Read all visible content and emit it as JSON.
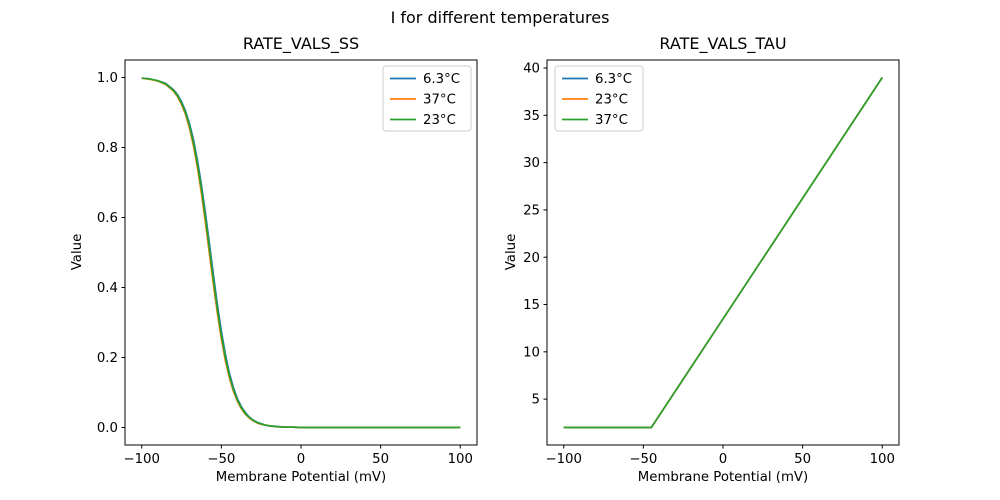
{
  "figure": {
    "suptitle": "I for different temperatures",
    "background_color": "#ffffff",
    "text_color": "#000000",
    "legend_border_color": "#cccccc"
  },
  "chart_data": [
    {
      "type": "line",
      "title": "RATE_VALS_SS",
      "xlabel": "Membrane Potential (mV)",
      "ylabel": "Value",
      "xlim": [
        -110.5,
        110.5
      ],
      "ylim": [
        -0.05,
        1.05
      ],
      "grid": false,
      "xticks": [
        -100,
        -50,
        0,
        50,
        100
      ],
      "xtick_labels": [
        "−100",
        "−50",
        "0",
        "50",
        "100"
      ],
      "yticks": [
        0.0,
        0.2,
        0.4,
        0.6,
        0.8,
        1.0
      ],
      "ytick_labels": [
        "0.0",
        "0.2",
        "0.4",
        "0.6",
        "0.8",
        "1.0"
      ],
      "legend": {
        "loc": "upper right",
        "entries": [
          {
            "label": "6.3°C",
            "color": "#1f77b4"
          },
          {
            "label": "37°C",
            "color": "#ff7f0e"
          },
          {
            "label": "23°C",
            "color": "#2ca02c"
          }
        ]
      },
      "x": [
        -100,
        -95,
        -90,
        -85,
        -80,
        -77.5,
        -75,
        -72.5,
        -70,
        -67.5,
        -65,
        -62.5,
        -60,
        -57.5,
        -55,
        -52.5,
        -50,
        -47.5,
        -45,
        -42.5,
        -40,
        -37.5,
        -35,
        -32.5,
        -30,
        -27.5,
        -25,
        -22.5,
        -20,
        -15,
        -10,
        -5,
        0,
        20,
        40,
        60,
        80,
        100
      ],
      "series": [
        {
          "name": "6.3°C",
          "color": "#1f77b4",
          "y": [
            0.998,
            0.996,
            0.991,
            0.983,
            0.965,
            0.951,
            0.931,
            0.904,
            0.868,
            0.822,
            0.763,
            0.693,
            0.612,
            0.525,
            0.436,
            0.351,
            0.275,
            0.21,
            0.156,
            0.115,
            0.083,
            0.06,
            0.043,
            0.03,
            0.021,
            0.015,
            0.011,
            0.007,
            0.005,
            0.003,
            0.001,
            0.001,
            0,
            0,
            0,
            0,
            0,
            0
          ]
        },
        {
          "name": "37°C",
          "color": "#ff7f0e",
          "y": [
            0.998,
            0.995,
            0.99,
            0.98,
            0.961,
            0.945,
            0.923,
            0.894,
            0.855,
            0.804,
            0.742,
            0.668,
            0.585,
            0.496,
            0.408,
            0.326,
            0.253,
            0.191,
            0.142,
            0.104,
            0.075,
            0.054,
            0.038,
            0.027,
            0.019,
            0.013,
            0.009,
            0.007,
            0.005,
            0.002,
            0.001,
            0.001,
            0,
            0,
            0,
            0,
            0,
            0
          ]
        },
        {
          "name": "23°C",
          "color": "#2ca02c",
          "y": [
            0.998,
            0.996,
            0.991,
            0.982,
            0.963,
            0.948,
            0.927,
            0.899,
            0.862,
            0.813,
            0.753,
            0.681,
            0.599,
            0.511,
            0.422,
            0.338,
            0.263,
            0.2,
            0.149,
            0.109,
            0.079,
            0.057,
            0.04,
            0.029,
            0.02,
            0.014,
            0.01,
            0.007,
            0.005,
            0.002,
            0.001,
            0.001,
            0,
            0,
            0,
            0,
            0,
            0
          ]
        }
      ]
    },
    {
      "type": "line",
      "title": "RATE_VALS_TAU",
      "xlabel": "Membrane Potential (mV)",
      "ylabel": "Value",
      "xlim": [
        -110.5,
        110.5
      ],
      "ylim": [
        0.15,
        40.85
      ],
      "grid": false,
      "xticks": [
        -100,
        -50,
        0,
        50,
        100
      ],
      "xtick_labels": [
        "−100",
        "−50",
        "0",
        "50",
        "100"
      ],
      "yticks": [
        5,
        10,
        15,
        20,
        25,
        30,
        35,
        40
      ],
      "ytick_labels": [
        "5",
        "10",
        "15",
        "20",
        "25",
        "30",
        "35",
        "40"
      ],
      "legend": {
        "loc": "upper left",
        "entries": [
          {
            "label": "6.3°C",
            "color": "#1f77b4"
          },
          {
            "label": "23°C",
            "color": "#ff7f0e"
          },
          {
            "label": "37°C",
            "color": "#2ca02c"
          }
        ]
      },
      "x": [
        -100,
        -45,
        100
      ],
      "series": [
        {
          "name": "6.3°C",
          "color": "#1f77b4",
          "y": [
            2,
            2,
            39
          ]
        },
        {
          "name": "23°C",
          "color": "#ff7f0e",
          "y": [
            2,
            2,
            39
          ]
        },
        {
          "name": "37°C",
          "color": "#2ca02c",
          "y": [
            2,
            2,
            39
          ]
        }
      ]
    }
  ]
}
